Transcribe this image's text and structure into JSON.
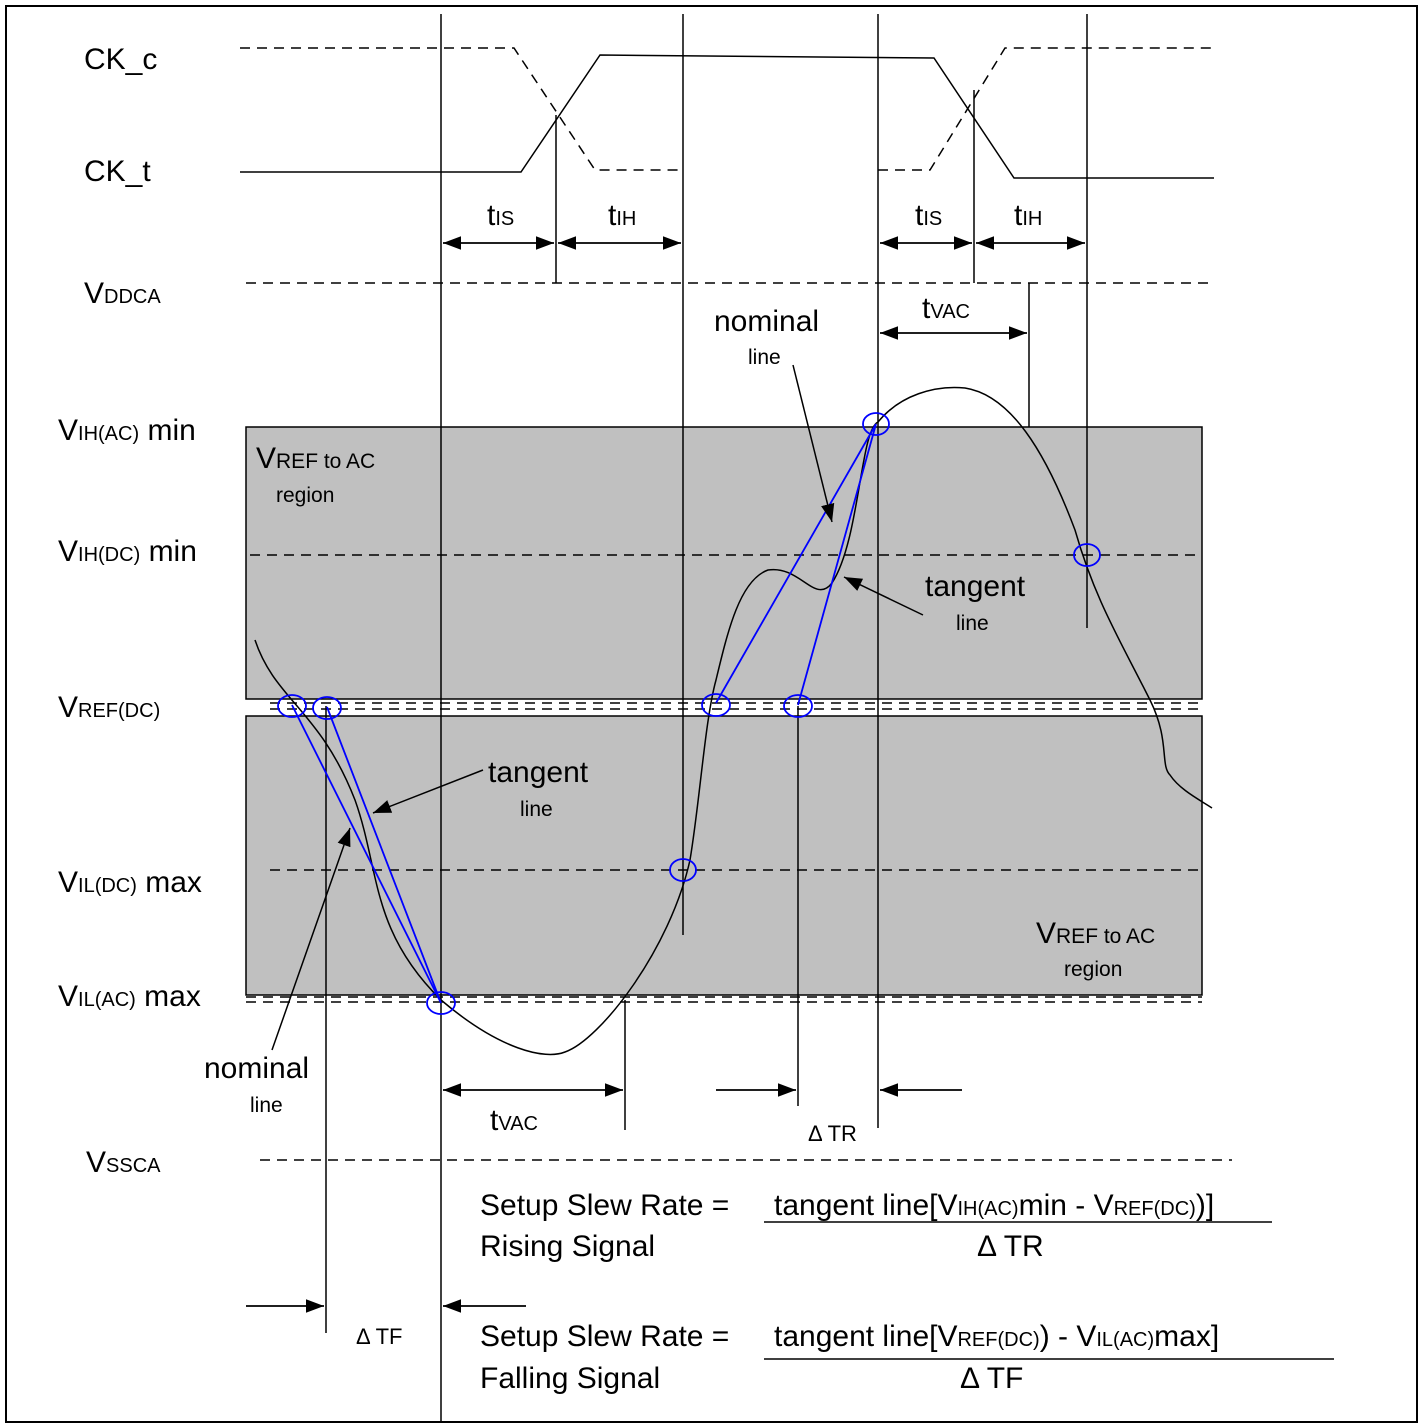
{
  "signals": {
    "ck_c": "CK_c",
    "ck_t": "CK_t"
  },
  "rails": {
    "vddca_main": "V",
    "vddca_sub": "DDCA",
    "vssca_main": "V",
    "vssca_sub": "SSCA"
  },
  "levels": {
    "vih_ac": {
      "main": "V",
      "sub": "IH(AC)",
      "suffix": " min"
    },
    "vih_dc": {
      "main": "V",
      "sub": "IH(DC)",
      "suffix": " min"
    },
    "vref_dc": {
      "main": "V",
      "sub": "REF(DC)"
    },
    "vil_dc": {
      "main": "V",
      "sub": "IL(DC)",
      "suffix": " max"
    },
    "vil_ac": {
      "main": "V",
      "sub": "IL(AC)",
      "suffix": " max"
    }
  },
  "regions": {
    "top": {
      "line1_main": "V",
      "line1_sub": "REF to AC",
      "line2": "region"
    },
    "bottom": {
      "line1_main": "V",
      "line1_sub": "REF to AC",
      "line2": "region"
    }
  },
  "timing": {
    "t": "t",
    "is": "IS",
    "ih": "IH",
    "vac": "VAC",
    "delta_tr": "Δ TR",
    "delta_tf": "Δ TF"
  },
  "annotations": {
    "nominal_word": "nominal",
    "tangent_word": "tangent",
    "line_word": "line"
  },
  "formulas": {
    "rising": {
      "left1": "Setup Slew Rate =",
      "left2": "Rising Signal",
      "num_a": "tangent line[V",
      "num_b": "IH(AC)",
      "num_c": "min - V",
      "num_d": "REF(DC)",
      "num_e": ")]",
      "den": "Δ TR"
    },
    "falling": {
      "left1": "Setup Slew Rate =",
      "left2": "Falling Signal",
      "num_a": "tangent line[V",
      "num_b": "REF(DC)",
      "num_c": ") - V",
      "num_d": "IL(AC)",
      "num_e": "max]",
      "den": "Δ TF"
    }
  }
}
